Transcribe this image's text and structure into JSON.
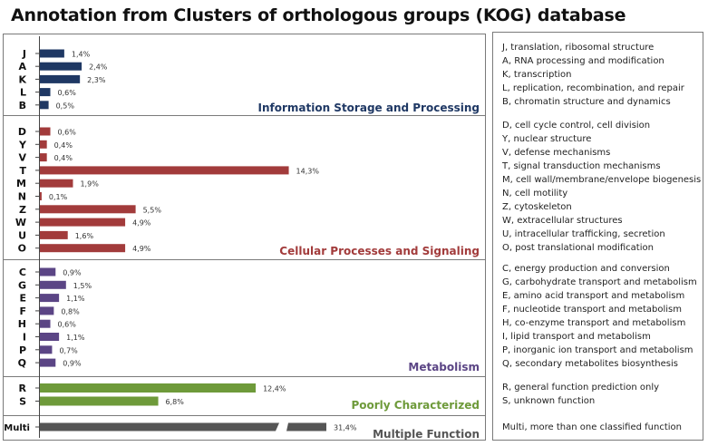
{
  "title": "Annotation from Clusters of orthologous groups (KOG) database",
  "chart_data": {
    "type": "bar",
    "orientation": "horizontal",
    "unit": "%",
    "groups": [
      {
        "name": "Information Storage and Processing",
        "color": "#1f3864",
        "categories": [
          "J",
          "A",
          "K",
          "L",
          "B"
        ],
        "values": [
          1.4,
          2.4,
          2.3,
          0.6,
          0.5
        ],
        "value_labels": [
          "1,4%",
          "2,4%",
          "2,3%",
          "0,6%",
          "0,5%"
        ]
      },
      {
        "name": "Cellular Processes and Signaling",
        "color": "#a23b3b",
        "categories": [
          "D",
          "Y",
          "V",
          "T",
          "M",
          "N",
          "Z",
          "W",
          "U",
          "O"
        ],
        "values": [
          0.6,
          0.4,
          0.4,
          14.3,
          1.9,
          0.1,
          5.5,
          4.9,
          1.6,
          4.9
        ],
        "value_labels": [
          "0,6%",
          "0,4%",
          "0,4%",
          "14,3%",
          "1,9%",
          "0,1%",
          "5,5%",
          "4,9%",
          "1,6%",
          "4,9%"
        ]
      },
      {
        "name": "Metabolism",
        "color": "#5b4585",
        "categories": [
          "C",
          "G",
          "E",
          "F",
          "H",
          "I",
          "P",
          "Q"
        ],
        "values": [
          0.9,
          1.5,
          1.1,
          0.8,
          0.6,
          1.1,
          0.7,
          0.9
        ],
        "value_labels": [
          "0,9%",
          "1,5%",
          "1,1%",
          "0,8%",
          "0,6%",
          "1,1%",
          "0,7%",
          "0,9%"
        ]
      },
      {
        "name": "Poorly Characterized",
        "color": "#6e9a3a",
        "categories": [
          "R",
          "S"
        ],
        "values": [
          12.4,
          6.8
        ],
        "value_labels": [
          "12,4%",
          "6,8%"
        ]
      },
      {
        "name": "Multiple Function",
        "color": "#555555",
        "categories": [
          "Multi"
        ],
        "values": [
          31.4
        ],
        "value_labels": [
          "31,4%"
        ],
        "axis_break": true
      }
    ]
  },
  "legend": [
    [
      "J, translation, ribosomal structure",
      "A, RNA processing and modification",
      "K, transcription",
      "L, replication, recombination, and repair",
      "B, chromatin structure and dynamics"
    ],
    [
      "D, cell cycle control, cell division",
      "Y, nuclear structure",
      "V, defense  mechanisms",
      "T, signal transduction mechanisms",
      "M, cell wall/membrane/envelope biogenesis",
      "N, cell motility",
      "Z, cytoskeleton",
      "W, extracellular structures",
      "U, intracellular trafficking, secretion",
      "O, post translational modification"
    ],
    [
      "C, energy production and conversion",
      "G, carbohydrate transport and metabolism",
      "E, amino acid transport and metabolism",
      "F, nucleotide transport and metabolism",
      "H, co-enzyme transport and metabolism",
      "I, lipid transport  and metabolism",
      "P, inorganic ion transport and metabolism",
      "Q, secondary metabolites biosynthesis"
    ],
    [
      "R, general function prediction only",
      "S, unknown function"
    ],
    [
      "Multi, more than one classified function"
    ]
  ]
}
